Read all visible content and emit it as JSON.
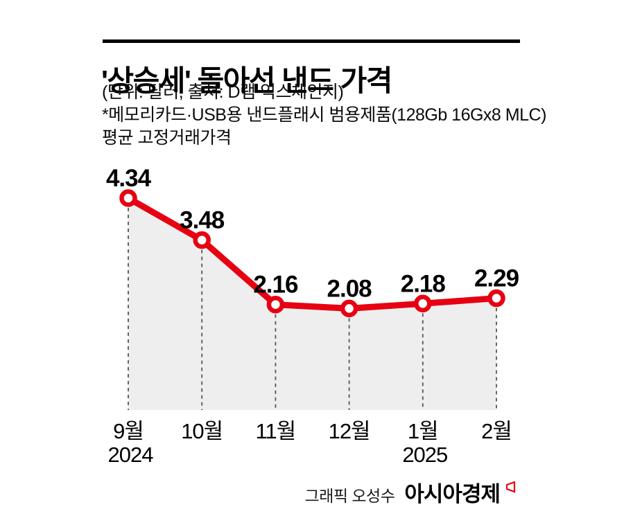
{
  "header": {
    "title": "'상승세' 돌아선 낸드 가격",
    "unit_source": "(단위: 달러, 출처: D램 익스체인지)",
    "note_line1": "*메모리카드·USB용 낸드플래시 범용제품(128Gb 16Gx8 MLC)",
    "note_line2": "평균 고정거래가격"
  },
  "chart_data": {
    "type": "line",
    "title": "'상승세' 돌아선 낸드 가격",
    "unit": "달러",
    "source": "D램 익스체인지",
    "categories": [
      "9월",
      "10월",
      "11월",
      "12월",
      "1월",
      "2월"
    ],
    "year_labels": [
      {
        "index": 0,
        "text": "2024"
      },
      {
        "index": 4,
        "text": "2025"
      }
    ],
    "values": [
      4.34,
      3.48,
      2.16,
      2.08,
      2.18,
      2.29
    ],
    "value_labels": [
      "4.34",
      "3.48",
      "2.16",
      "2.08",
      "2.18",
      "2.29"
    ],
    "ylim": [
      0,
      4.8
    ],
    "line_color": "#e60012",
    "area_color": "#eeeeee",
    "drop_line_color": "#555555",
    "marker": "circle-open",
    "grid": "dashed-vertical-droplines",
    "legend": "none"
  },
  "footer": {
    "credit": "그래픽 오성수",
    "brand": "아시아경제",
    "brand_mark": "red-flag-icon"
  },
  "colors": {
    "accent_red": "#e60012",
    "area_fill": "#eeeeee",
    "text": "#000000"
  }
}
